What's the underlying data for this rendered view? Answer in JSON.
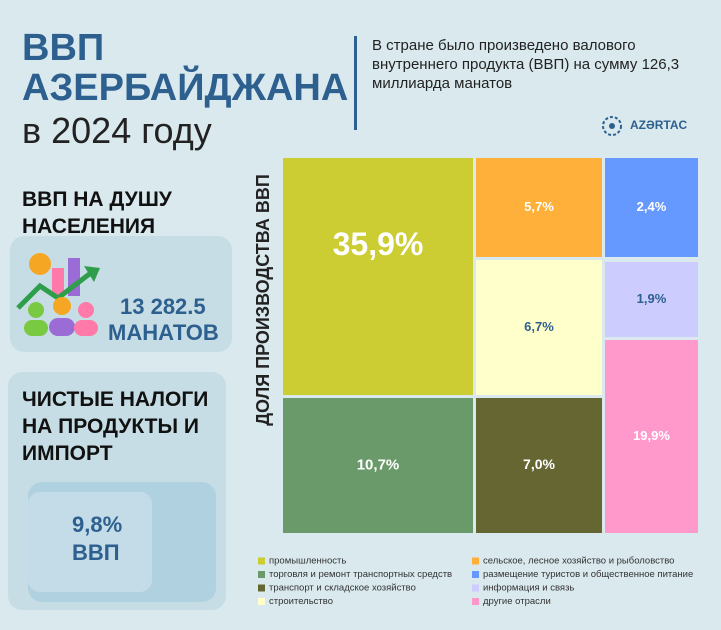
{
  "header": {
    "title_line1": "ВВП",
    "title_line2": "АЗЕРБАЙДЖАНА",
    "title_line3": "в 2024 году",
    "description": "В стране было произведено валового внутреннего продукта (ВВП) на сумму 126,3 миллиарда манатов",
    "logo": "AZƏRTAC"
  },
  "per_capita": {
    "title": "ВВП НА ДУШУ НАСЕЛЕНИЯ",
    "value": "13 282.5",
    "unit": "МАНАТОВ"
  },
  "net_taxes": {
    "title": "ЧИСТЫЕ НАЛОГИ НА ПРОДУКТЫ И ИМПОРТ",
    "value": "9,8%",
    "unit": "ВВП"
  },
  "chart_data": {
    "type": "treemap",
    "y_label": "ДОЛЯ ПРОИЗВОДСТВА ВВП",
    "categories": [
      "промышленность",
      "торговля и ремонт транспортных средств",
      "транспорт и складское хозяйство",
      "строительство",
      "сельское, лесное хозяйство и рыболовство",
      "размещение туристов и общественное питание",
      "информация и связь",
      "другие отрасли"
    ],
    "values": [
      35.9,
      10.7,
      7.0,
      6.7,
      5.7,
      2.4,
      1.9,
      19.9
    ],
    "value_labels": [
      "35,9%",
      "10,7%",
      "7,0%",
      "6,7%",
      "5,7%",
      "2,4%",
      "1,9%",
      "19,9%"
    ],
    "colors": [
      "#cccc33",
      "#6a9a6a",
      "#666633",
      "#ffffcc",
      "#ffb03b",
      "#6699ff",
      "#ccccff",
      "#ff99cc"
    ]
  }
}
